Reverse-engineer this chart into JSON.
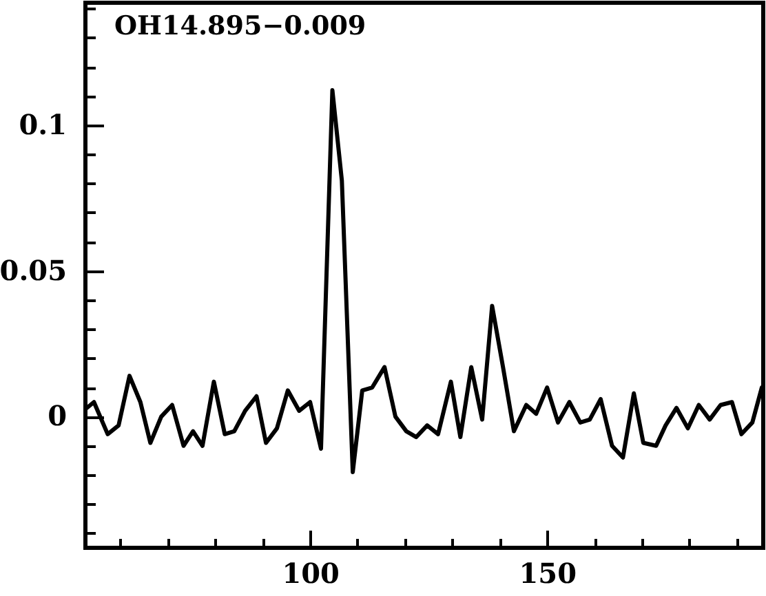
{
  "chart_data": {
    "type": "line",
    "title": "OH14.895−0.009",
    "x": [
      52.9,
      54.4,
      57.3,
      59.6,
      61.9,
      64.2,
      66.3,
      68.6,
      70.9,
      73.3,
      75.3,
      77.3,
      79.7,
      82.0,
      84.0,
      86.3,
      88.7,
      90.7,
      93.0,
      95.3,
      97.7,
      100.0,
      102.3,
      104.7,
      106.7,
      109.0,
      111.0,
      113.1,
      115.7,
      118.0,
      120.3,
      122.4,
      124.7,
      127.0,
      129.7,
      131.7,
      134.0,
      136.3,
      138.4,
      140.7,
      143.0,
      145.6,
      147.7,
      150.0,
      152.3,
      154.7,
      157.0,
      159.0,
      161.3,
      163.7,
      166.0,
      168.3,
      170.3,
      173.0,
      175.0,
      177.3,
      179.7,
      182.0,
      184.3,
      186.6,
      189.0,
      191.0,
      193.3,
      195.3
    ],
    "series": [
      {
        "color": "#000000",
        "values": [
          0.003,
          0.005,
          -0.006,
          -0.003,
          0.014,
          0.005,
          -0.009,
          0.0,
          0.004,
          -0.01,
          -0.005,
          -0.01,
          0.012,
          -0.006,
          -0.005,
          0.002,
          0.007,
          -0.009,
          -0.004,
          0.009,
          0.002,
          0.005,
          -0.011,
          0.112,
          0.081,
          -0.019,
          0.009,
          0.01,
          0.017,
          0.0,
          -0.005,
          -0.007,
          -0.003,
          -0.006,
          0.012,
          -0.007,
          0.017,
          -0.001,
          0.038,
          0.017,
          -0.005,
          0.004,
          0.001,
          0.01,
          -0.002,
          0.005,
          -0.002,
          -0.001,
          0.006,
          -0.01,
          -0.014,
          0.008,
          -0.009,
          -0.01,
          -0.003,
          0.003,
          -0.004,
          0.004,
          -0.001,
          0.004,
          0.005,
          -0.006,
          -0.002,
          0.01
        ]
      }
    ],
    "xlim": [
      52.6,
      195.6
    ],
    "ylim": [
      -0.045,
      0.142
    ],
    "xticks": [
      {
        "value": 60,
        "label": null
      },
      {
        "value": 70,
        "label": null
      },
      {
        "value": 80,
        "label": null
      },
      {
        "value": 90,
        "label": null
      },
      100,
      {
        "value": 110,
        "label": null
      },
      {
        "value": 120,
        "label": null
      },
      {
        "value": 130,
        "label": null
      },
      {
        "value": 140,
        "label": null
      },
      150,
      {
        "value": 160,
        "label": null
      },
      {
        "value": 170,
        "label": null
      },
      {
        "value": 180,
        "label": null
      },
      {
        "value": 190,
        "label": null
      }
    ],
    "yticks": [
      {
        "value": -0.04,
        "label": null
      },
      {
        "value": -0.03,
        "label": null
      },
      {
        "value": -0.02,
        "label": null
      },
      {
        "value": -0.01,
        "label": null
      },
      0,
      {
        "value": 0.01,
        "label": null
      },
      {
        "value": 0.02,
        "label": null
      },
      {
        "value": 0.03,
        "label": null
      },
      {
        "value": 0.04,
        "label": null
      },
      0.05,
      {
        "value": 0.06,
        "label": null
      },
      {
        "value": 0.07,
        "label": null
      },
      {
        "value": 0.08,
        "label": null
      },
      {
        "value": 0.09,
        "label": null
      },
      0.1,
      {
        "value": 0.11,
        "label": null
      },
      {
        "value": 0.12,
        "label": null
      },
      {
        "value": 0.13,
        "label": null
      },
      {
        "value": 0.14,
        "label": null
      }
    ]
  }
}
